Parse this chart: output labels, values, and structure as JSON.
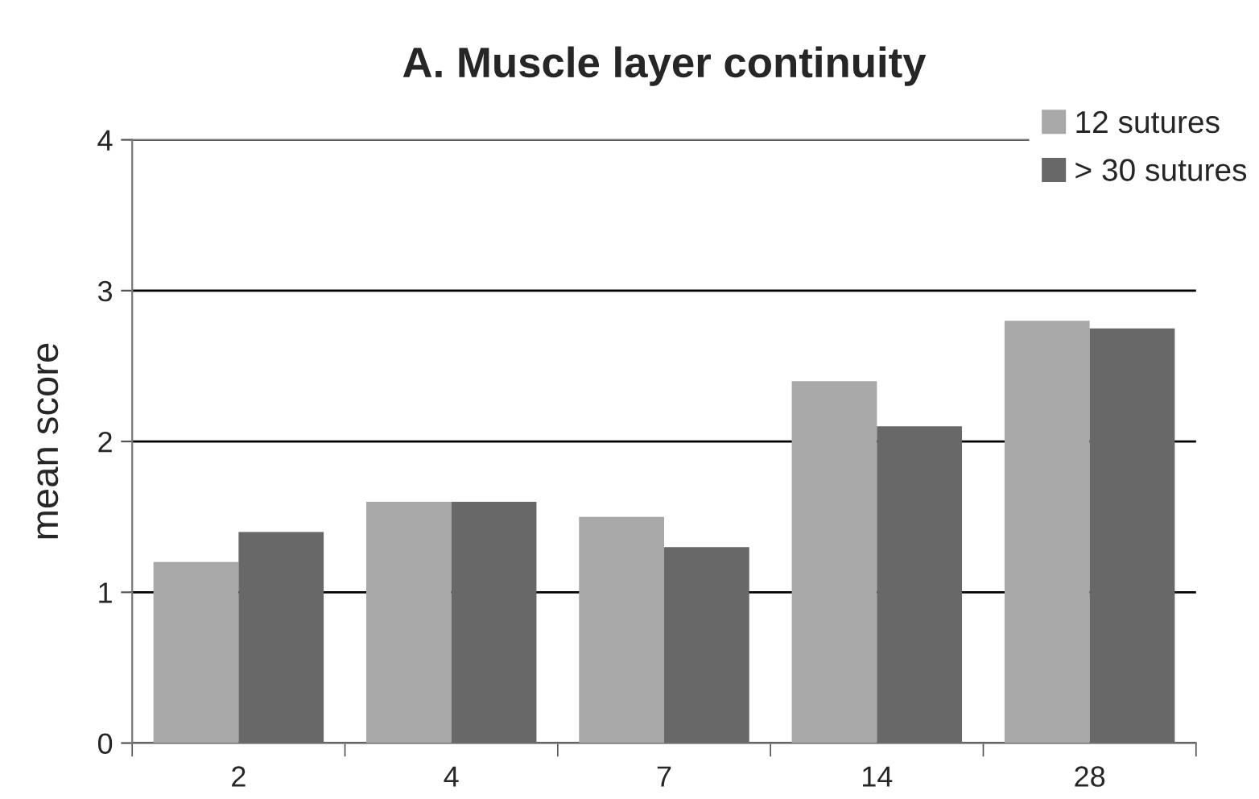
{
  "chart_data": {
    "type": "bar",
    "title": "A. Muscle layer continuity",
    "ylabel": "mean score",
    "categories": [
      "2",
      "4",
      "7",
      "14",
      "28"
    ],
    "series": [
      {
        "name": "12 sutures",
        "color": "#a8a8a8",
        "values": [
          1.2,
          1.6,
          1.5,
          2.4,
          2.8
        ]
      },
      {
        "name": "> 30 sutures",
        "color": "#686868",
        "values": [
          1.4,
          1.6,
          1.3,
          2.1,
          2.75
        ]
      }
    ],
    "ylim": [
      0,
      4
    ],
    "yticks": [
      0,
      1,
      2,
      3,
      4
    ],
    "grid": "y",
    "legend": "top right"
  }
}
